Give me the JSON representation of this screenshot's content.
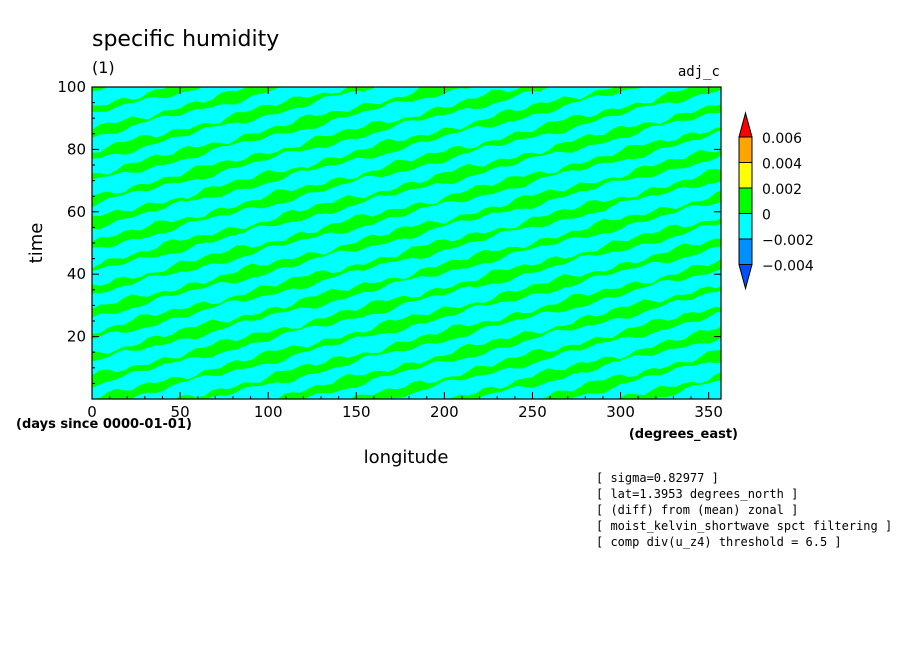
{
  "chart_data": {
    "type": "heatmap",
    "title": "specific humidity",
    "units": "(1)",
    "run_label": "adj_c",
    "xlabel": "longitude",
    "ylabel": "time",
    "x_units": "(degrees_east)",
    "y_units": "(days since 0000-01-01)",
    "xlim": [
      0,
      357
    ],
    "ylim": [
      0,
      100
    ],
    "x_ticks": [
      0,
      50,
      100,
      150,
      200,
      250,
      300,
      350
    ],
    "y_ticks": [
      20,
      40,
      60,
      80,
      100
    ],
    "pattern": "eastward-propagating diagonal bands alternating between the 0 to 0.002 and -0.002 to 0 intervals",
    "colorbar": {
      "levels": [
        "0.006",
        "0.004",
        "0.002",
        "0",
        "−0.002",
        "−0.004"
      ],
      "colors": {
        "above_0.006": "#ff0000",
        "0.004_to_0.006": "#ffa500",
        "0.002_to_0.004": "#ffff00",
        "0_to_0.002": "#00ff00",
        "-0.002_to_0": "#00ffff",
        "-0.004_to_-0.002": "#0090ff",
        "below_-0.004": "#0050ff"
      }
    },
    "annotations": [
      "[ sigma=0.82977 ]",
      "[ lat=1.3953 degrees_north ]",
      "[ (diff) from (mean) zonal ]",
      "[ moist_kelvin_shortwave spct filtering ]",
      "[ comp div(u_z4) threshold = 6.5 ]"
    ]
  }
}
